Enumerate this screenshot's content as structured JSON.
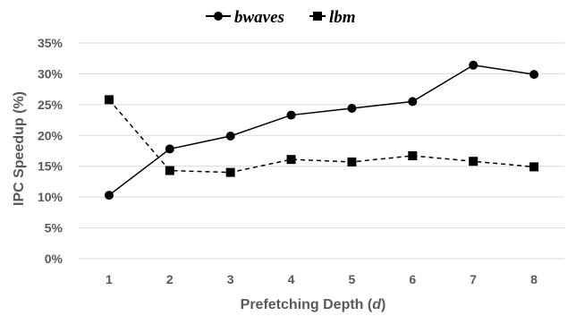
{
  "chart_data": {
    "type": "line",
    "x": [
      1,
      2,
      3,
      4,
      5,
      6,
      7,
      8
    ],
    "series": [
      {
        "name": "bwaves",
        "values": [
          10.3,
          17.8,
          19.9,
          23.3,
          24.4,
          25.5,
          31.4,
          29.9
        ],
        "marker": "circle",
        "line_style": "solid"
      },
      {
        "name": "lbm",
        "values": [
          25.8,
          14.3,
          14.0,
          16.1,
          15.7,
          16.7,
          15.8,
          14.9
        ],
        "marker": "square",
        "line_style": "dashed"
      }
    ],
    "xlabel": "Prefetching Depth (",
    "xlabel_var": "d",
    "xlabel_end": ")",
    "ylabel": "IPC Speedup (%)",
    "ylim": [
      0,
      35
    ],
    "yticks": [
      "0%",
      "5%",
      "10%",
      "15%",
      "20%",
      "25%",
      "30%",
      "35%"
    ],
    "xticks": [
      "1",
      "2",
      "3",
      "4",
      "5",
      "6",
      "7",
      "8"
    ],
    "grid": "horizontal",
    "legend_position": "top-center",
    "colors": {
      "line": "#000000",
      "grid": "#d9d9d9",
      "text": "#595959"
    }
  }
}
